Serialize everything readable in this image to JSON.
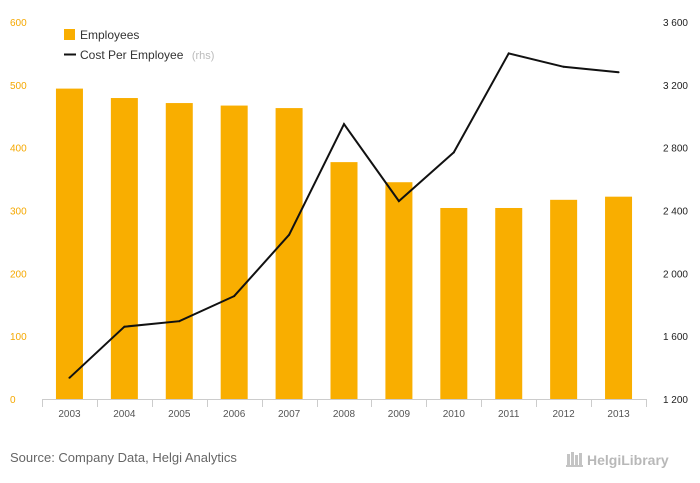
{
  "chart_data": {
    "type": "bar",
    "categories": [
      "2003",
      "2004",
      "2005",
      "2006",
      "2007",
      "2008",
      "2009",
      "2010",
      "2011",
      "2012",
      "2013"
    ],
    "series": [
      {
        "name": "Employees",
        "type": "bar",
        "axis": "left",
        "color": "#f9ae00",
        "values": [
          494,
          479,
          471,
          467,
          463,
          377,
          345,
          304,
          304,
          317,
          322
        ]
      },
      {
        "name": "Cost Per Employee",
        "name_suffix": "(rhs)",
        "type": "line",
        "axis": "right",
        "color": "#111111",
        "values": [
          1335,
          1660,
          1695,
          1855,
          2245,
          2950,
          2460,
          2770,
          3400,
          3315,
          3280
        ]
      }
    ],
    "y_left": {
      "ylim": [
        0,
        600
      ],
      "ticks": [
        "0",
        "100",
        "200",
        "300",
        "400",
        "500",
        "600"
      ],
      "color": "#f5a800"
    },
    "y_right": {
      "ylim": [
        1200,
        3600
      ],
      "ticks": [
        "1 200",
        "1 600",
        "2 000",
        "2 400",
        "2 800",
        "3 200",
        "3 600"
      ]
    },
    "legend": {
      "position": "top-left"
    },
    "grid": false
  },
  "footer": {
    "source": "Source: Company Data, Helgi Analytics",
    "brand": "HelgiLibrary"
  }
}
